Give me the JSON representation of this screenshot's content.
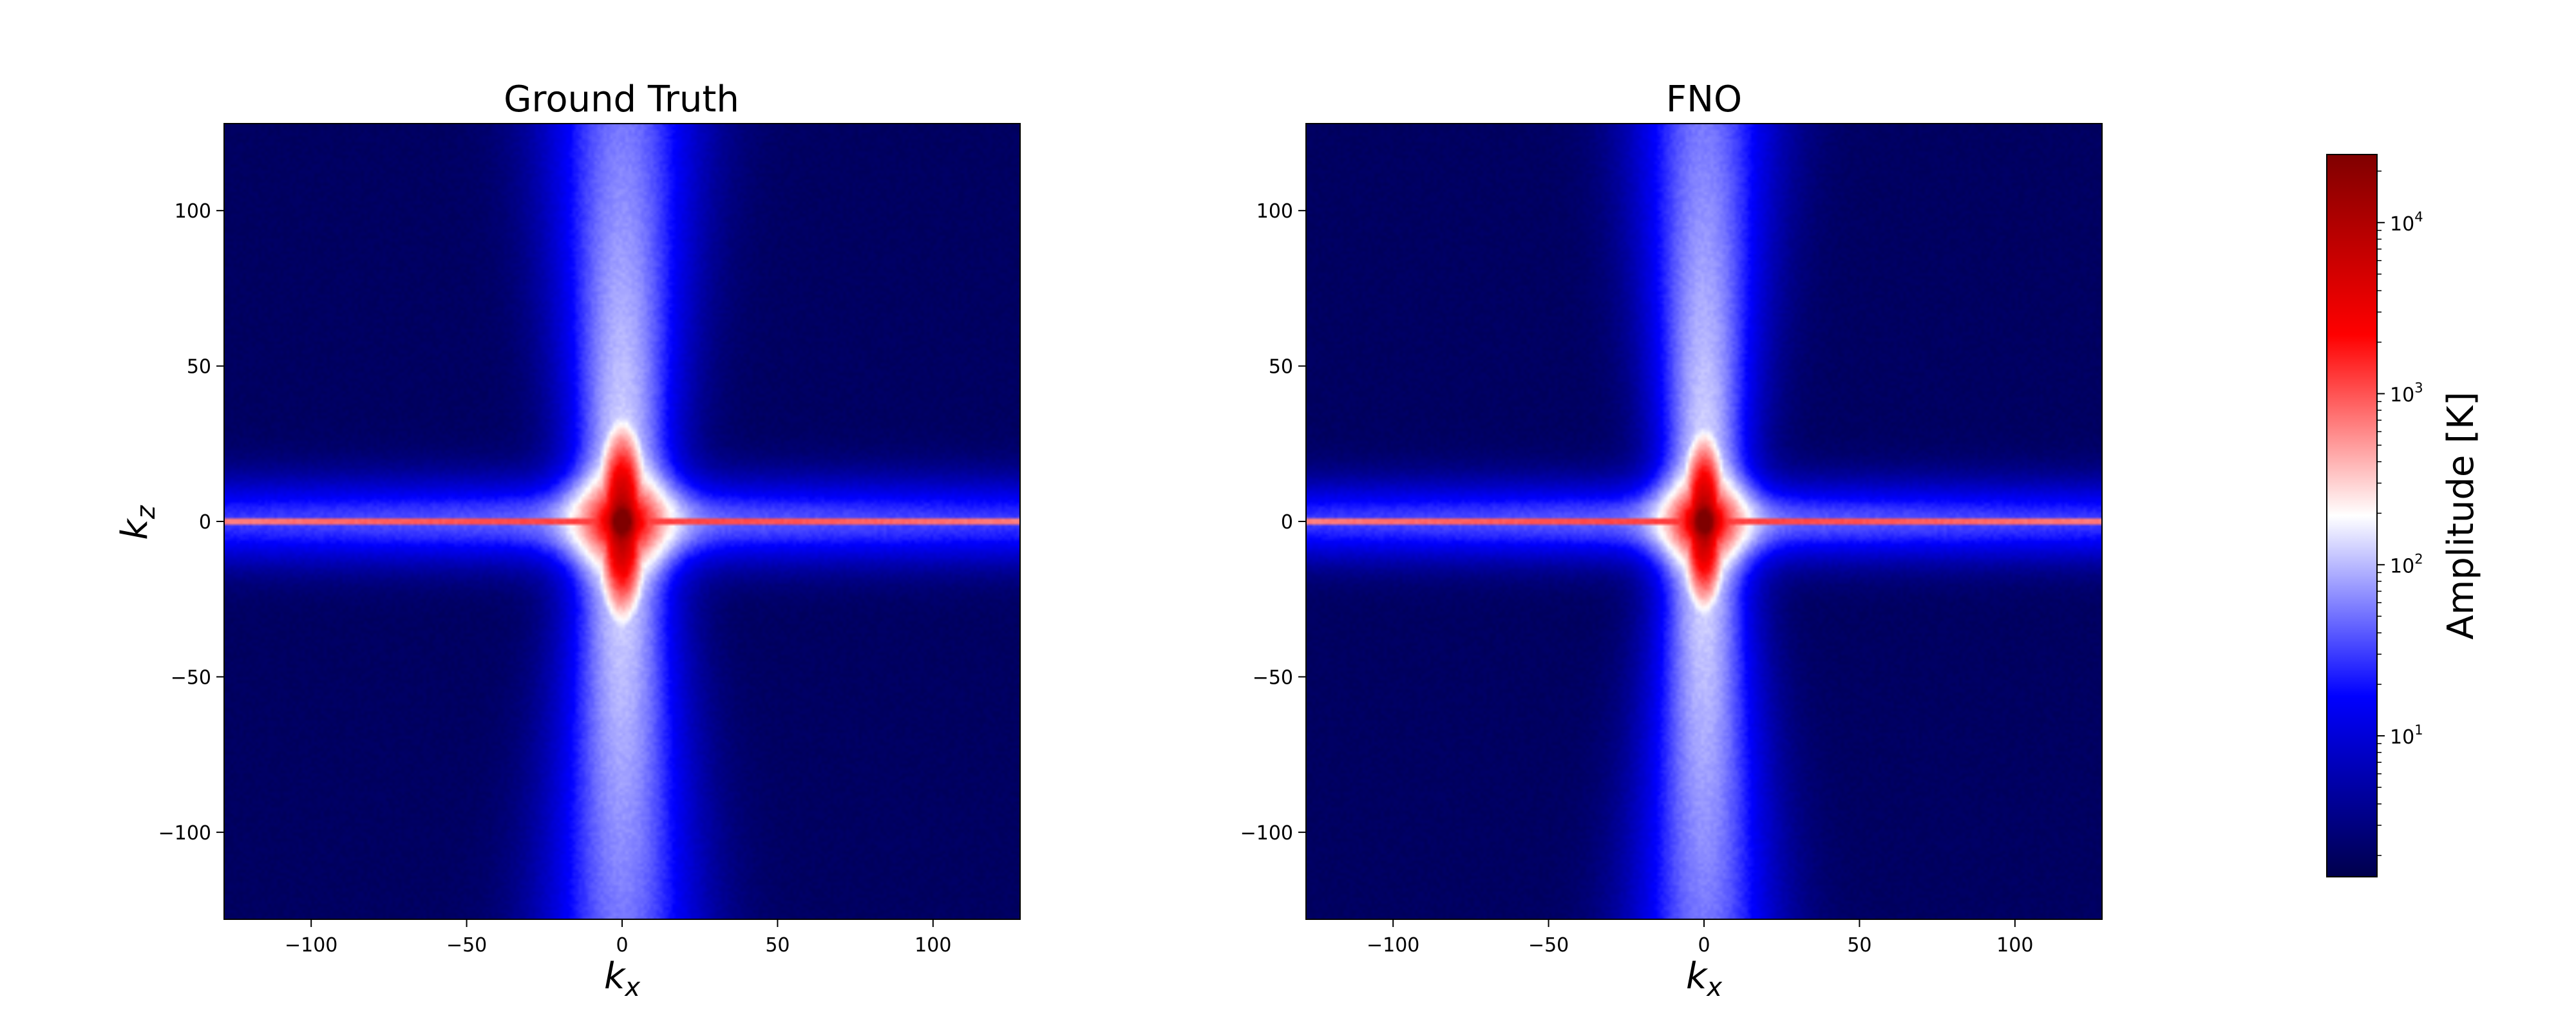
{
  "chart_data": [
    {
      "type": "heatmap",
      "title": "Ground Truth",
      "xlabel_base": "k",
      "xlabel_sub": "x",
      "ylabel_base": "k",
      "ylabel_sub": "z",
      "xlim": [
        -128,
        128
      ],
      "ylim": [
        -128,
        128
      ],
      "xticks": [
        -100,
        -50,
        0,
        50,
        100
      ],
      "yticks": [
        -100,
        -50,
        0,
        50,
        100
      ],
      "xtick_labels": [
        "−100",
        "−50",
        "0",
        "50",
        "100"
      ],
      "ytick_labels": [
        "−100",
        "−50",
        "0",
        "50",
        "100"
      ],
      "field": {
        "description": "log-amplitude spectrum, peak at origin",
        "peak_amplitude": 20000,
        "kz0_line_amplitude": 2500,
        "kx_axis_halfwidth": 3,
        "core_halfwidth_kx": 10,
        "core_halfheight_kz": 40,
        "vertical_band_center_halfwidth": 16,
        "vertical_band_edge_halfwidth": 26,
        "horizontal_band_halfheight": 14,
        "background_amplitude": 2
      }
    },
    {
      "type": "heatmap",
      "title": "FNO",
      "xlabel_base": "k",
      "xlabel_sub": "x",
      "xlim": [
        -128,
        128
      ],
      "ylim": [
        -128,
        128
      ],
      "xticks": [
        -100,
        -50,
        0,
        50,
        100
      ],
      "yticks": [
        -100,
        -50,
        0,
        50,
        100
      ],
      "xtick_labels": [
        "−100",
        "−50",
        "0",
        "50",
        "100"
      ],
      "ytick_labels": [
        "−100",
        "−50",
        "0",
        "50",
        "100"
      ],
      "field": {
        "description": "log-amplitude spectrum, peak at origin",
        "peak_amplitude": 18000,
        "kz0_line_amplitude": 2500,
        "kx_axis_halfwidth": 3,
        "core_halfwidth_kx": 9,
        "core_halfheight_kz": 36,
        "vertical_band_center_halfwidth": 14,
        "vertical_band_edge_halfwidth": 24,
        "horizontal_band_halfheight": 13,
        "background_amplitude": 2
      }
    }
  ],
  "colorbar": {
    "label": "Amplitude [K]",
    "scale": "log",
    "vmin": 1.5,
    "vmax": 25000,
    "ticks": [
      {
        "base": "10",
        "exp": "1",
        "value": 10
      },
      {
        "base": "10",
        "exp": "2",
        "value": 100
      },
      {
        "base": "10",
        "exp": "3",
        "value": 1000
      },
      {
        "base": "10",
        "exp": "4",
        "value": 10000
      }
    ],
    "colormap": [
      "#00004c",
      "#0000ff",
      "#ffffff",
      "#ff0000",
      "#800000"
    ]
  }
}
